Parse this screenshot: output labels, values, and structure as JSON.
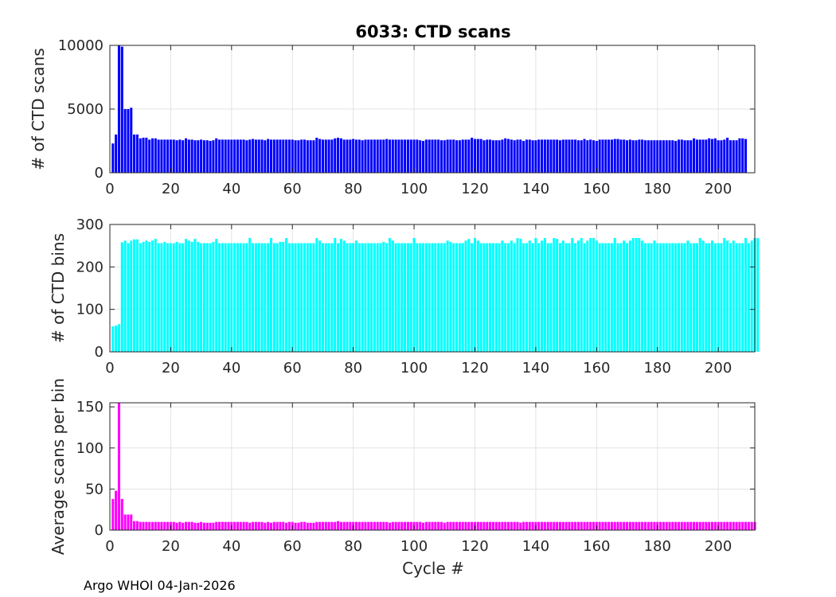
{
  "figure": {
    "title": "6033: CTD scans",
    "footer": "Argo WHOI 04-Jan-2026",
    "xlabel": "Cycle #"
  },
  "chart_data": [
    {
      "type": "bar",
      "ylabel": "# of CTD scans",
      "color": "#0000ff",
      "xlim": [
        0,
        212
      ],
      "ylim": [
        0,
        10000
      ],
      "xticks": [
        0,
        20,
        40,
        60,
        80,
        100,
        120,
        140,
        160,
        180,
        200
      ],
      "yticks": [
        0,
        5000,
        10000
      ],
      "grid": true,
      "x_start": 1,
      "values": [
        2300,
        3000,
        10000,
        9900,
        5000,
        5000,
        5100,
        3000,
        3000,
        2700,
        2750,
        2750,
        2600,
        2700,
        2700,
        2600,
        2600,
        2600,
        2600,
        2600,
        2600,
        2550,
        2600,
        2550,
        2700,
        2600,
        2600,
        2550,
        2550,
        2600,
        2550,
        2550,
        2500,
        2550,
        2700,
        2600,
        2600,
        2600,
        2600,
        2600,
        2600,
        2600,
        2600,
        2600,
        2550,
        2600,
        2650,
        2600,
        2600,
        2600,
        2550,
        2650,
        2600,
        2600,
        2600,
        2600,
        2600,
        2600,
        2600,
        2600,
        2550,
        2550,
        2600,
        2600,
        2550,
        2550,
        2550,
        2750,
        2650,
        2600,
        2600,
        2600,
        2600,
        2700,
        2750,
        2700,
        2600,
        2600,
        2600,
        2650,
        2600,
        2600,
        2550,
        2600,
        2600,
        2600,
        2600,
        2600,
        2600,
        2600,
        2650,
        2600,
        2600,
        2600,
        2600,
        2600,
        2600,
        2600,
        2600,
        2600,
        2600,
        2550,
        2500,
        2600,
        2600,
        2600,
        2600,
        2600,
        2550,
        2550,
        2600,
        2600,
        2600,
        2550,
        2550,
        2600,
        2600,
        2600,
        2750,
        2650,
        2650,
        2650,
        2550,
        2600,
        2600,
        2550,
        2550,
        2550,
        2600,
        2700,
        2650,
        2600,
        2550,
        2600,
        2600,
        2500,
        2600,
        2600,
        2550,
        2550,
        2600,
        2600,
        2600,
        2600,
        2600,
        2600,
        2600,
        2550,
        2600,
        2600,
        2600,
        2600,
        2600,
        2550,
        2550,
        2650,
        2550,
        2600,
        2550,
        2500,
        2600,
        2600,
        2600,
        2600,
        2600,
        2650,
        2650,
        2600,
        2600,
        2550,
        2600,
        2550,
        2550,
        2600,
        2600,
        2550,
        2550,
        2550,
        2550,
        2550,
        2550,
        2550,
        2550,
        2550,
        2550,
        2500,
        2600,
        2600,
        2550,
        2550,
        2550,
        2700,
        2600,
        2600,
        2600,
        2600,
        2700,
        2650,
        2700,
        2550,
        2550,
        2600,
        2750,
        2550,
        2550,
        2550,
        2700,
        2700,
        2650
      ]
    },
    {
      "type": "bar",
      "ylabel": "# of CTD bins",
      "color": "#00ffff",
      "xlim": [
        0,
        212
      ],
      "ylim": [
        0,
        300
      ],
      "xticks": [
        0,
        20,
        40,
        60,
        80,
        100,
        120,
        140,
        160,
        180,
        200
      ],
      "yticks": [
        0,
        100,
        200,
        300
      ],
      "grid": true,
      "x_start": 1,
      "values": [
        60,
        62,
        65,
        258,
        262,
        256,
        262,
        265,
        265,
        256,
        259,
        262,
        259,
        262,
        266,
        256,
        256,
        259,
        256,
        256,
        256,
        259,
        256,
        256,
        266,
        262,
        259,
        266,
        259,
        256,
        256,
        256,
        256,
        259,
        266,
        256,
        256,
        256,
        256,
        256,
        256,
        256,
        256,
        256,
        256,
        268,
        256,
        256,
        256,
        256,
        256,
        256,
        268,
        256,
        256,
        259,
        259,
        268,
        256,
        256,
        256,
        256,
        256,
        256,
        256,
        256,
        256,
        268,
        262,
        256,
        256,
        256,
        256,
        268,
        256,
        266,
        262,
        256,
        256,
        256,
        262,
        256,
        256,
        256,
        256,
        256,
        256,
        256,
        256,
        259,
        256,
        268,
        262,
        256,
        256,
        256,
        256,
        256,
        256,
        268,
        256,
        256,
        256,
        256,
        256,
        256,
        256,
        256,
        256,
        256,
        262,
        259,
        256,
        256,
        256,
        256,
        262,
        266,
        256,
        268,
        262,
        256,
        256,
        256,
        256,
        256,
        256,
        256,
        262,
        256,
        256,
        262,
        256,
        268,
        266,
        256,
        256,
        262,
        256,
        268,
        256,
        262,
        268,
        256,
        256,
        268,
        266,
        256,
        262,
        256,
        256,
        268,
        256,
        262,
        268,
        256,
        262,
        268,
        268,
        262,
        256,
        256,
        256,
        256,
        256,
        268,
        256,
        256,
        262,
        256,
        262,
        268,
        268,
        268,
        262,
        256,
        256,
        256,
        262,
        256,
        256,
        256,
        256,
        256,
        256,
        256,
        256,
        256,
        256,
        262,
        256,
        256,
        256,
        268,
        262,
        256,
        256,
        262,
        256,
        256,
        256,
        268,
        262,
        256,
        262,
        256,
        256,
        256,
        268,
        256,
        262,
        268,
        268
      ]
    },
    {
      "type": "bar",
      "ylabel": "Average scans per bin",
      "color": "#ff00ff",
      "xlim": [
        0,
        212
      ],
      "ylim": [
        0,
        155
      ],
      "xticks": [
        0,
        20,
        40,
        60,
        80,
        100,
        120,
        140,
        160,
        180,
        200
      ],
      "yticks": [
        0,
        50,
        100,
        150
      ],
      "grid": true,
      "x_start": 1,
      "values": [
        38,
        48,
        155,
        38,
        19,
        19,
        19,
        11,
        11,
        10,
        10,
        10,
        10,
        10,
        10,
        10,
        10,
        10,
        10,
        10,
        10,
        9,
        10,
        9,
        10,
        10,
        10,
        9,
        9,
        10,
        9,
        9,
        9,
        9,
        10,
        10,
        10,
        10,
        10,
        10,
        10,
        10,
        10,
        10,
        10,
        9,
        10,
        10,
        10,
        10,
        9,
        10,
        9,
        10,
        10,
        10,
        10,
        9,
        10,
        10,
        9,
        9,
        10,
        10,
        9,
        9,
        9,
        10,
        10,
        10,
        10,
        10,
        10,
        10,
        11,
        10,
        10,
        10,
        10,
        10,
        10,
        10,
        10,
        10,
        10,
        10,
        10,
        10,
        10,
        10,
        10,
        9,
        10,
        10,
        10,
        10,
        10,
        10,
        10,
        10,
        10,
        10,
        9,
        10,
        10,
        10,
        10,
        10,
        10,
        9,
        10,
        10,
        10,
        10,
        10,
        10,
        10,
        10,
        10,
        10,
        10,
        10,
        10,
        10,
        10,
        10,
        10,
        10,
        10,
        10,
        10,
        10,
        10,
        10,
        9,
        10,
        10,
        10,
        10,
        10,
        10,
        10,
        10,
        10,
        10,
        10,
        10,
        10,
        10,
        10,
        10,
        10,
        10,
        10,
        10,
        10,
        10,
        10,
        10,
        10,
        10,
        10,
        10,
        10,
        10,
        10,
        10,
        10,
        10,
        10,
        10,
        10,
        10,
        10,
        10,
        10,
        10,
        10,
        10,
        10,
        10,
        10,
        10,
        10,
        10,
        10,
        10,
        10,
        10,
        10,
        10,
        10,
        10,
        10,
        10,
        10,
        10,
        10,
        10,
        10,
        10,
        10,
        10,
        10,
        10,
        10,
        10,
        10,
        10,
        10,
        10,
        10
      ]
    }
  ]
}
